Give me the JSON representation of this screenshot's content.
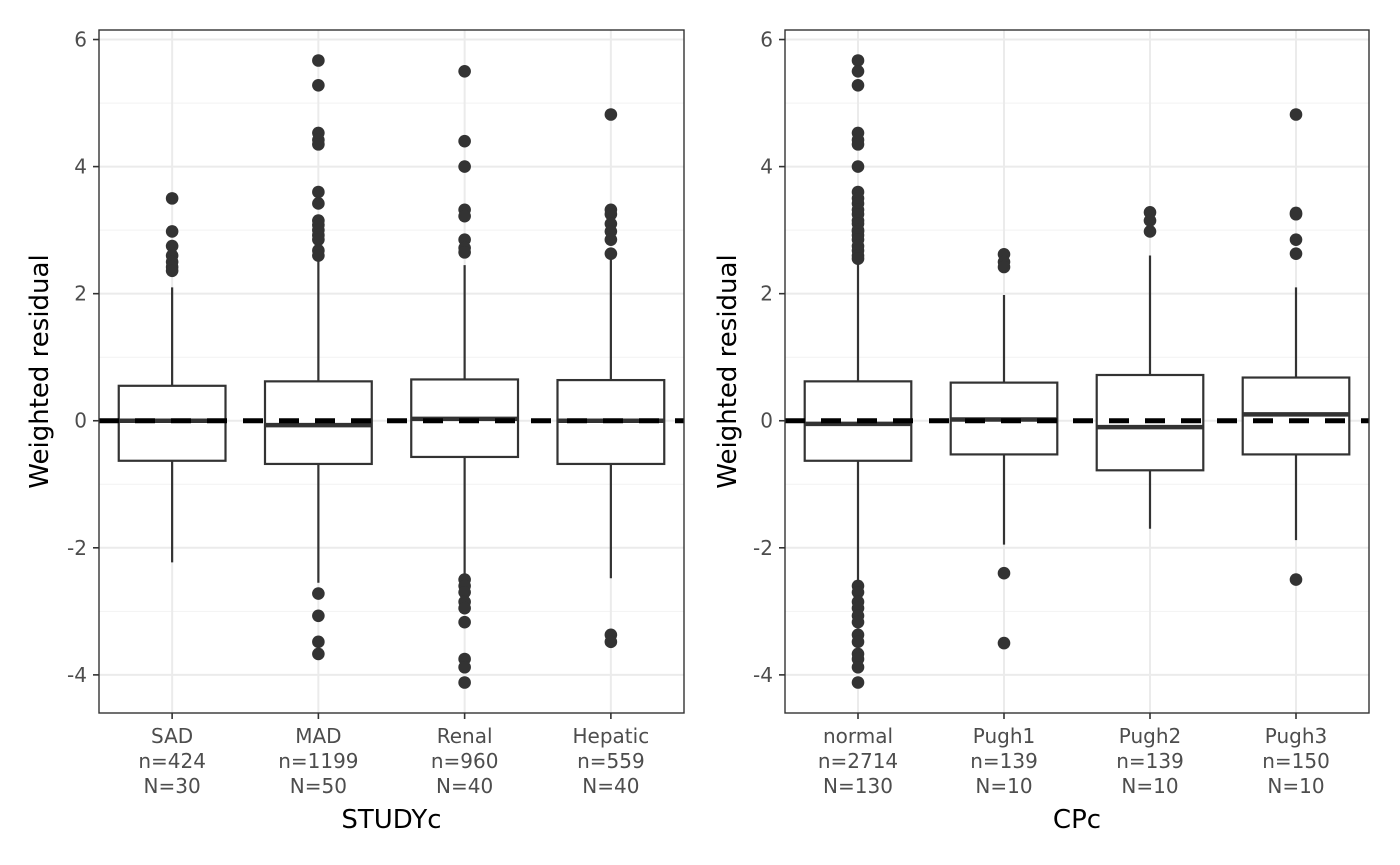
{
  "chart_data": [
    {
      "type": "box",
      "xlabel": "STUDYc",
      "ylabel": "Weighted residual",
      "ylim": [
        -4.6,
        6.15
      ],
      "yticks": [
        -4,
        -2,
        0,
        2,
        4,
        6
      ],
      "ytick_labels": [
        "-4",
        "-2",
        "0",
        "2",
        "4",
        "6"
      ],
      "reference_line": 0,
      "categories": [
        {
          "label_lines": [
            "SAD",
            "n=424",
            "N=30"
          ],
          "q1": -0.63,
          "median": 0.0,
          "q3": 0.55,
          "whisker_low": -2.23,
          "whisker_high": 2.1,
          "outliers": [
            3.5,
            2.98,
            2.75,
            2.6,
            2.5,
            2.42,
            2.36
          ]
        },
        {
          "label_lines": [
            "MAD",
            "n=1199",
            "N=50"
          ],
          "q1": -0.68,
          "median": -0.07,
          "q3": 0.62,
          "whisker_low": -2.55,
          "whisker_high": 2.55,
          "outliers": [
            5.67,
            5.28,
            4.53,
            4.42,
            4.35,
            3.6,
            3.42,
            3.15,
            3.08,
            3.0,
            2.92,
            2.85,
            2.68,
            2.6,
            -2.72,
            -3.07,
            -3.48,
            -3.67
          ]
        },
        {
          "label_lines": [
            "Renal",
            "n=960",
            "N=40"
          ],
          "q1": -0.57,
          "median": 0.03,
          "q3": 0.65,
          "whisker_low": -2.45,
          "whisker_high": 2.45,
          "outliers": [
            5.5,
            4.4,
            4.0,
            3.32,
            3.22,
            2.85,
            2.72,
            2.65,
            -2.5,
            -2.6,
            -2.7,
            -2.85,
            -2.95,
            -3.17,
            -3.75,
            -3.88,
            -4.12
          ]
        },
        {
          "label_lines": [
            "Hepatic",
            "n=559",
            "N=40"
          ],
          "q1": -0.68,
          "median": 0.0,
          "q3": 0.64,
          "whisker_low": -2.48,
          "whisker_high": 2.55,
          "outliers": [
            4.82,
            3.32,
            3.25,
            3.1,
            2.98,
            2.85,
            2.63,
            -3.37,
            -3.48
          ]
        }
      ]
    },
    {
      "type": "box",
      "xlabel": "CPc",
      "ylabel": "Weighted residual",
      "ylim": [
        -4.6,
        6.15
      ],
      "yticks": [
        -4,
        -2,
        0,
        2,
        4,
        6
      ],
      "ytick_labels": [
        "-4",
        "-2",
        "0",
        "2",
        "4",
        "6"
      ],
      "reference_line": 0,
      "categories": [
        {
          "label_lines": [
            "normal",
            "n=2714",
            "N=130"
          ],
          "q1": -0.63,
          "median": -0.05,
          "q3": 0.62,
          "whisker_low": -2.52,
          "whisker_high": 2.52,
          "outliers": [
            5.67,
            5.5,
            5.28,
            4.53,
            4.42,
            4.35,
            4.0,
            3.6,
            3.5,
            3.42,
            3.32,
            3.25,
            3.15,
            3.1,
            3.0,
            2.98,
            2.92,
            2.85,
            2.75,
            2.68,
            2.6,
            2.55,
            -2.6,
            -2.7,
            -2.85,
            -2.95,
            -3.07,
            -3.17,
            -3.37,
            -3.48,
            -3.67,
            -3.75,
            -3.88,
            -4.12
          ]
        },
        {
          "label_lines": [
            "Pugh1",
            "n=139",
            "N=10"
          ],
          "q1": -0.53,
          "median": 0.02,
          "q3": 0.6,
          "whisker_low": -1.95,
          "whisker_high": 1.98,
          "outliers": [
            2.62,
            2.5,
            2.42,
            -2.4,
            -3.5
          ]
        },
        {
          "label_lines": [
            "Pugh2",
            "n=139",
            "N=10"
          ],
          "q1": -0.78,
          "median": -0.1,
          "q3": 0.72,
          "whisker_low": -1.7,
          "whisker_high": 2.6,
          "outliers": [
            3.28,
            3.15,
            2.98
          ]
        },
        {
          "label_lines": [
            "Pugh3",
            "n=150",
            "N=10"
          ],
          "q1": -0.53,
          "median": 0.1,
          "q3": 0.68,
          "whisker_low": -1.88,
          "whisker_high": 2.1,
          "outliers": [
            4.82,
            3.27,
            3.25,
            2.85,
            2.63,
            -2.5
          ]
        }
      ]
    }
  ]
}
